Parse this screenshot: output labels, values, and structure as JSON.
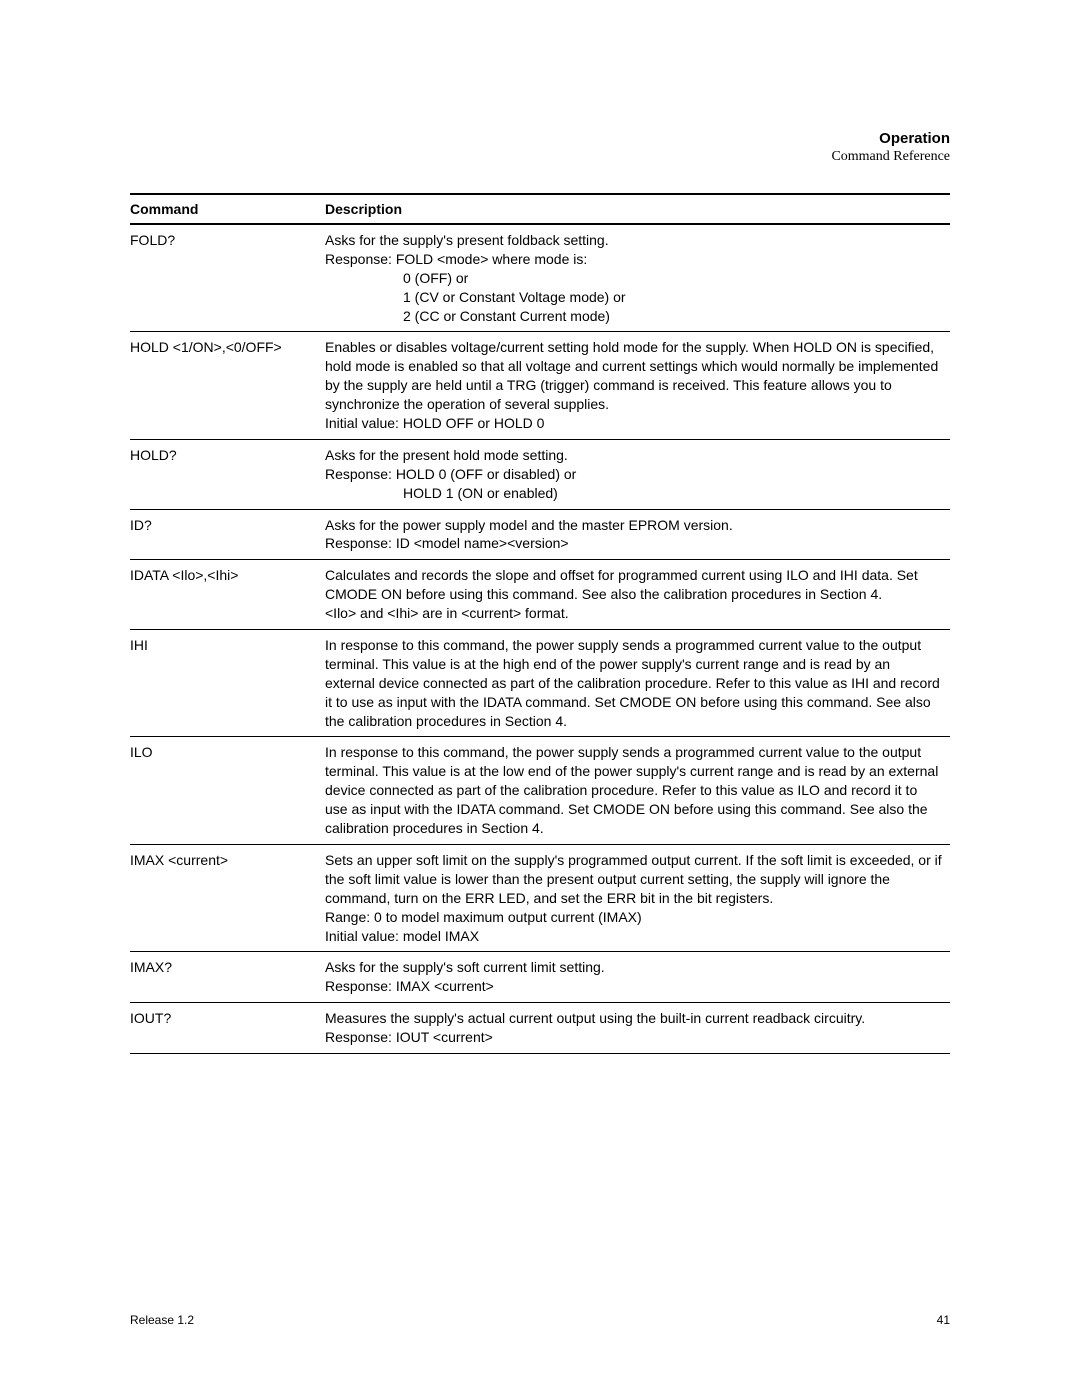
{
  "header": {
    "title": "Operation",
    "subtitle": "Command Reference"
  },
  "table": {
    "col_command": "Command",
    "col_description": "Description",
    "rows": [
      {
        "cmd": "FOLD?",
        "desc_main": "Asks for the supply's present foldback setting.\nResponse: FOLD <mode> where mode is:",
        "desc_indent": "0 (OFF) or\n1 (CV or Constant Voltage mode) or\n2 (CC or Constant Current mode)"
      },
      {
        "cmd": "HOLD <1/ON>,<0/OFF>",
        "desc_main": "Enables or disables voltage/current setting hold mode for the supply. When HOLD ON is specified, hold mode is enabled so that all voltage and current settings which would normally be implemented by the supply are held until a TRG (trigger) command is received. This feature allows you to synchronize the operation of several supplies.\nInitial value: HOLD OFF or HOLD 0"
      },
      {
        "cmd": "HOLD?",
        "desc_main": "Asks for the present hold mode setting.\nResponse:  HOLD 0 (OFF or disabled) or",
        "desc_indent": "HOLD 1 (ON or enabled)"
      },
      {
        "cmd": "ID?",
        "desc_main": "Asks for the power supply model and the master EPROM version.\nResponse: ID <model name><version>"
      },
      {
        "cmd": "IDATA <Ilo>,<Ihi>",
        "desc_main": "Calculates and records the slope and offset for programmed current using ILO and IHI data. Set CMODE ON before using this command. See also the calibration procedures in Section 4.\n<Ilo> and <Ihi> are in <current> format."
      },
      {
        "cmd": "IHI",
        "desc_main": "In response to this command, the power supply sends a programmed current value to the output terminal. This value is at the high end of the power supply's current range and is read by an external device connected as part of the calibration procedure. Refer to this value as IHI and record it to use as input with the IDATA command. Set CMODE ON before using this command. See also the calibration procedures in Section 4."
      },
      {
        "cmd": "ILO",
        "desc_main": "In response to this command, the power supply sends a programmed current value to the output terminal. This value is at the low end of the power supply's current range and is read by an external device connected as part of the calibration procedure. Refer to this value as ILO and record it to use as input with the IDATA command. Set CMODE ON before using this command. See also the calibration procedures in Section 4."
      },
      {
        "cmd": "IMAX <current>",
        "desc_main": "Sets an upper soft limit on the supply's programmed output current. If the soft limit is exceeded, or if the soft limit value is lower than the present output current setting, the supply will ignore the command, turn on the ERR LED, and set the ERR bit in the bit registers.\nRange: 0 to model maximum output current (IMAX)\nInitial value: model IMAX"
      },
      {
        "cmd": "IMAX?",
        "desc_main": "Asks for the supply's soft current limit setting.\nResponse: IMAX <current>"
      },
      {
        "cmd": "IOUT?",
        "desc_main": "Measures the supply's actual current output using the built-in current readback circuitry.\nResponse: IOUT <current>"
      }
    ]
  },
  "footer": {
    "release": "Release 1.2",
    "page": "41"
  }
}
